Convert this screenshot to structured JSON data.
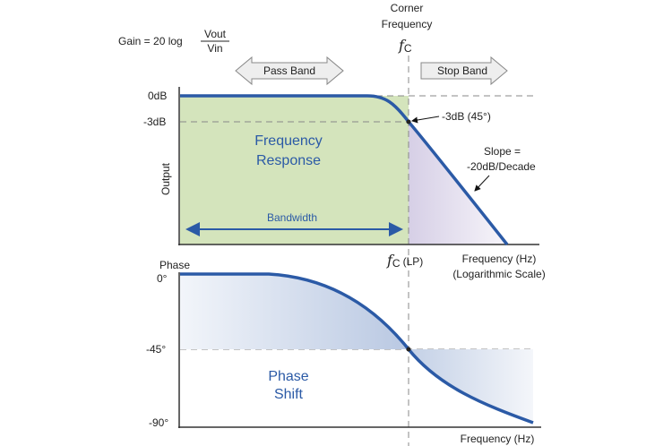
{
  "gain_formula": {
    "prefix": "Gain = 20 log",
    "numerator": "Vout",
    "denominator": "Vin"
  },
  "corner_frequency": {
    "line1": "Corner",
    "line2": "Frequency",
    "symbol": "f",
    "subscript": "C"
  },
  "bands": {
    "pass_band": "Pass Band",
    "stop_band": "Stop Band"
  },
  "magnitude_plot": {
    "tick_0db": "0dB",
    "tick_3db": "-3dB",
    "ylabel": "Output",
    "region_line1": "Frequency",
    "region_line2": "Response",
    "bandwidth": "Bandwidth",
    "point_annotation": "-3dB (45°)",
    "slope_line1": "Slope =",
    "slope_line2": "-20dB/Decade",
    "fc_lp_symbol": "f",
    "fc_lp_subscript": "C",
    "fc_lp_suffix": "(LP)",
    "xlabel_line1": "Frequency (Hz)",
    "xlabel_line2": "(Logarithmic Scale)"
  },
  "phase_plot": {
    "ylabel": "Phase",
    "tick_0": "0°",
    "tick_45": "-45°",
    "tick_90": "-90°",
    "region_line1": "Phase",
    "region_line2": "Shift",
    "xlabel": "Frequency (Hz)"
  },
  "colors": {
    "curve": "#2b5aa6",
    "pass_band_fill": "#d4e4bc",
    "stop_band_fill": "#e6e0ee",
    "phase_fill": "#dbe3f0",
    "dashed": "#888888",
    "arrow_fill": "#eeeeee"
  }
}
